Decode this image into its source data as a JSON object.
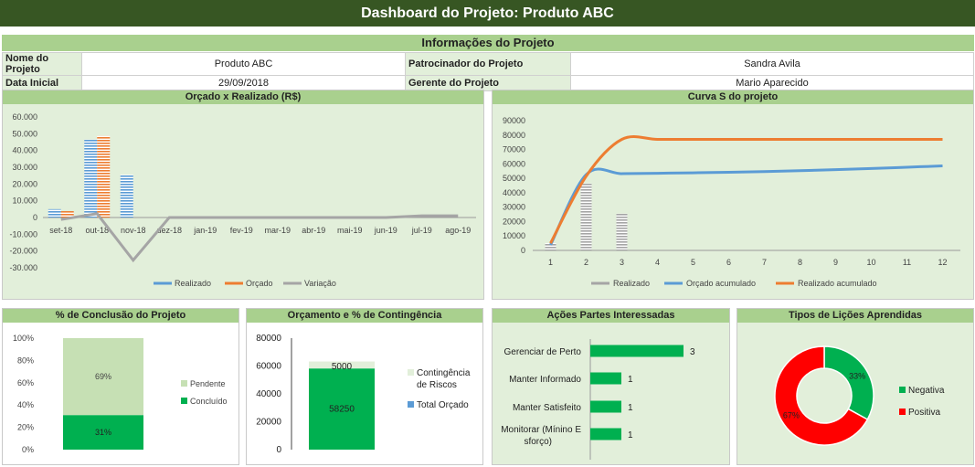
{
  "title": "Dashboard do Projeto: Produto ABC",
  "info": {
    "header": "Informações do Projeto",
    "nome_label": "Nome do Projeto",
    "nome_value": "Produto ABC",
    "data_label": "Data Inicial",
    "data_value": "29/09/2018",
    "patrocinador_label": "Patrocinador do Projeto",
    "patrocinador_value": "Sandra Avila",
    "gerente_label": "Gerente do Projeto",
    "gerente_value": "Mario Aparecido"
  },
  "colors": {
    "dark_green": "#375623",
    "header_green": "#a9d08e",
    "panel_green": "#e2efda",
    "blue": "#5b9bd5",
    "orange": "#ed7d31",
    "gray": "#a5a5a5",
    "green": "#00b050",
    "light_green": "#c6e0b4",
    "red": "#ff0000"
  },
  "chart_data": [
    {
      "id": "orcado_realizado",
      "type": "bar",
      "title": "Orçado x Realizado (R$)",
      "categories": [
        "set-18",
        "out-18",
        "nov-18",
        "dez-18",
        "jan-19",
        "fev-19",
        "mar-19",
        "abr-19",
        "mai-19",
        "jun-19",
        "jul-19",
        "ago-19"
      ],
      "series": [
        {
          "name": "Realizado",
          "type": "bar",
          "values": [
            5000,
            46500,
            25500,
            0,
            0,
            0,
            0,
            0,
            0,
            0,
            0,
            0
          ]
        },
        {
          "name": "Orçado",
          "type": "bar",
          "values": [
            3800,
            48800,
            0,
            0,
            0,
            0,
            0,
            0,
            0,
            0,
            0,
            0
          ]
        },
        {
          "name": "Variação",
          "type": "line",
          "values": [
            -1200,
            2300,
            -25500,
            0,
            0,
            0,
            0,
            0,
            0,
            0,
            1000,
            1000
          ]
        }
      ],
      "yticks": [
        "60.000",
        "50.000",
        "40.000",
        "30.000",
        "20.000",
        "10.000",
        "0",
        "-10.000",
        "-20.000",
        "-30.000"
      ],
      "ylim": [
        -30000,
        60000
      ],
      "legend": "bottom"
    },
    {
      "id": "curva_s",
      "type": "line",
      "title": "Curva S do projeto",
      "x": [
        1,
        2,
        3,
        4,
        5,
        6,
        7,
        8,
        9,
        10,
        11,
        12
      ],
      "series": [
        {
          "name": "Realizado",
          "type": "bar",
          "values": [
            5000,
            46500,
            25500,
            0,
            0,
            0,
            0,
            0,
            0,
            0,
            0,
            0
          ]
        },
        {
          "name": "Orçado acumulado",
          "type": "line",
          "values": [
            3800,
            52600,
            53200,
            53500,
            53800,
            54200,
            54700,
            55300,
            56000,
            56800,
            57700,
            58600
          ]
        },
        {
          "name": "Realizado acumulado",
          "type": "line",
          "values": [
            5000,
            51500,
            77000,
            77000,
            77000,
            77000,
            77000,
            77000,
            77000,
            77000,
            77000,
            77000
          ]
        }
      ],
      "yticks": [
        "90000",
        "80000",
        "70000",
        "60000",
        "50000",
        "40000",
        "30000",
        "20000",
        "10000",
        "0"
      ],
      "ylim": [
        0,
        90000
      ],
      "legend": "bottom"
    },
    {
      "id": "conclusao",
      "type": "bar",
      "title": "% de Conclusão do Projeto",
      "categories": [
        ""
      ],
      "series": [
        {
          "name": "Concluído",
          "values": [
            31
          ],
          "label": "31%"
        },
        {
          "name": "Pendente",
          "values": [
            69
          ],
          "label": "69%"
        }
      ],
      "yticks": [
        "100%",
        "80%",
        "60%",
        "40%",
        "20%",
        "0%"
      ],
      "ylim": [
        0,
        100
      ],
      "legend": "right"
    },
    {
      "id": "contingencia",
      "type": "bar",
      "title": "Orçamento e % de Contingência",
      "categories": [
        ""
      ],
      "series": [
        {
          "name": "Total Orçado",
          "values": [
            58250
          ],
          "label": "58250"
        },
        {
          "name": "Contingência de Riscos",
          "values": [
            5000
          ],
          "label": "5000"
        }
      ],
      "yticks": [
        "80000",
        "60000",
        "40000",
        "20000",
        "0"
      ],
      "ylim": [
        0,
        80000
      ],
      "legend": "right"
    },
    {
      "id": "partes",
      "type": "bar",
      "title": "Ações Partes Interessadas",
      "categories": [
        "Gerenciar de Perto",
        "Manter Informado",
        "Manter Satisfeito",
        "Monitorar (Mínino Esforço)"
      ],
      "values": [
        3,
        1,
        1,
        1
      ]
    },
    {
      "id": "licoes",
      "type": "pie",
      "title": "Tipos de Lições Aprendidas",
      "slices": [
        {
          "name": "Negativa",
          "value": 33,
          "label": "33%"
        },
        {
          "name": "Positiva",
          "value": 67,
          "label": "67%"
        }
      ],
      "legend": "right"
    }
  ]
}
